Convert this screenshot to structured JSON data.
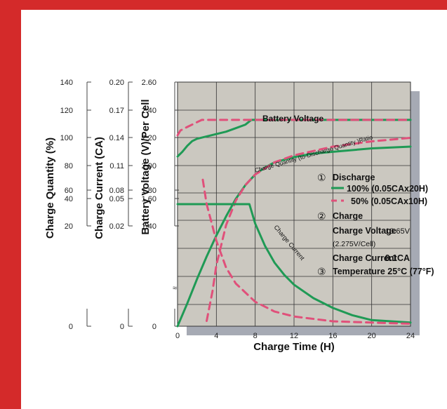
{
  "colors": {
    "frame": "#d42a2a",
    "plot_bg": "#cbc8c0",
    "plot_shadow": "#a6aab4",
    "grid": "#333333",
    "series_100": "#1f9a55",
    "series_50": "#e0507a"
  },
  "chart_data": {
    "type": "line",
    "xlabel": "Charge Time (H)",
    "xlim": [
      0,
      24
    ],
    "x_ticks": [
      "0",
      "4",
      "8",
      "12",
      "16",
      "20",
      "24"
    ],
    "y_axes": [
      {
        "label": "Charge Quantity (%)",
        "ticks": [
          "140",
          "120",
          "100",
          "80",
          "60",
          "40",
          "20",
          "0"
        ],
        "range": [
          0,
          140
        ]
      },
      {
        "label": "Charge Current (CA)",
        "ticks": [
          "0.20",
          "0.17",
          "0.14",
          "0.11",
          "0.08",
          "0.05",
          "0.02",
          "0"
        ],
        "range": [
          0,
          0.2
        ]
      },
      {
        "label": "Battery Voltage (V)/Per Cell",
        "ticks": [
          "2.60",
          "2.40",
          "2.20",
          "2.00",
          "1.80",
          "1.60",
          "1.40",
          "0"
        ],
        "range": [
          1.4,
          2.6
        ]
      }
    ],
    "curve_labels": {
      "battery_voltage": "Battery Voltage",
      "charge_quantity": "Charge Quantity (to-Discharge Quantity )Ratio",
      "charge_current": "Charge Current"
    },
    "legend": {
      "discharge_num": "①",
      "discharge_title": "Discharge",
      "series_100": "100% (0.05CAx20H)",
      "series_50": "50% (0.05CAx10H)",
      "charge_num": "②",
      "charge_title": "Charge",
      "charge_voltage_label": "Charge Voltage",
      "charge_voltage_value": "13.65V",
      "charge_voltage_cell": "(2.275V/Cell)",
      "charge_current_label": "Charge Current",
      "charge_current_value": "0.1CA",
      "temp_num": "③",
      "temp_label": "Temperature 25°C (77°F)"
    },
    "series": [
      {
        "id": "voltage_100",
        "style": "solid",
        "color": "#1f9a55",
        "points": [
          [
            0,
            1.97
          ],
          [
            0.5,
            2.01
          ],
          [
            1,
            2.06
          ],
          [
            1.5,
            2.1
          ],
          [
            2,
            2.12
          ],
          [
            3,
            2.14
          ],
          [
            4,
            2.16
          ],
          [
            5,
            2.18
          ],
          [
            6,
            2.21
          ],
          [
            7,
            2.24
          ],
          [
            7.3,
            2.26
          ],
          [
            7.6,
            2.28
          ],
          [
            8,
            2.28
          ],
          [
            24,
            2.28
          ]
        ]
      },
      {
        "id": "voltage_50",
        "style": "dashed",
        "color": "#e0507a",
        "points": [
          [
            0,
            2.15
          ],
          [
            0.3,
            2.19
          ],
          [
            1,
            2.22
          ],
          [
            2,
            2.26
          ],
          [
            2.5,
            2.28
          ],
          [
            3,
            2.28
          ],
          [
            24,
            2.28
          ]
        ]
      },
      {
        "id": "quantity_100",
        "style": "solid",
        "color": "#1f9a55",
        "points": [
          [
            0,
            0
          ],
          [
            1,
            13
          ],
          [
            2,
            27
          ],
          [
            3,
            40
          ],
          [
            4,
            52
          ],
          [
            5,
            63
          ],
          [
            6,
            73
          ],
          [
            7,
            81
          ],
          [
            8,
            87
          ],
          [
            9,
            91
          ],
          [
            10,
            94
          ],
          [
            12,
            97
          ],
          [
            14,
            99
          ],
          [
            16,
            100
          ],
          [
            20,
            102
          ],
          [
            24,
            103
          ]
        ]
      },
      {
        "id": "quantity_50",
        "style": "dashed",
        "color": "#e0507a",
        "points": [
          [
            3,
            3
          ],
          [
            3.6,
            20
          ],
          [
            4,
            35
          ],
          [
            5,
            58
          ],
          [
            6,
            72
          ],
          [
            7,
            81
          ],
          [
            8,
            87
          ],
          [
            10,
            94
          ],
          [
            12,
            98
          ],
          [
            16,
            103
          ],
          [
            20,
            106
          ],
          [
            24,
            108
          ]
        ]
      },
      {
        "id": "current_100",
        "style": "solid",
        "color": "#1f9a55",
        "points": [
          [
            0,
            0.1
          ],
          [
            1,
            0.1
          ],
          [
            2,
            0.1
          ],
          [
            4,
            0.1
          ],
          [
            6,
            0.1
          ],
          [
            7.4,
            0.1
          ],
          [
            8,
            0.084
          ],
          [
            9,
            0.066
          ],
          [
            10,
            0.052
          ],
          [
            11,
            0.042
          ],
          [
            12,
            0.034
          ],
          [
            14,
            0.023
          ],
          [
            16,
            0.015
          ],
          [
            18,
            0.009
          ],
          [
            20,
            0.005
          ],
          [
            24,
            0.003
          ]
        ]
      },
      {
        "id": "current_50",
        "style": "dashed",
        "color": "#e0507a",
        "points": [
          [
            2.6,
            0.12
          ],
          [
            3,
            0.1
          ],
          [
            4,
            0.07
          ],
          [
            5,
            0.048
          ],
          [
            6,
            0.035
          ],
          [
            8,
            0.02
          ],
          [
            10,
            0.012
          ],
          [
            12,
            0.008
          ],
          [
            16,
            0.004
          ],
          [
            20,
            0.003
          ],
          [
            24,
            0.002
          ]
        ]
      }
    ]
  }
}
